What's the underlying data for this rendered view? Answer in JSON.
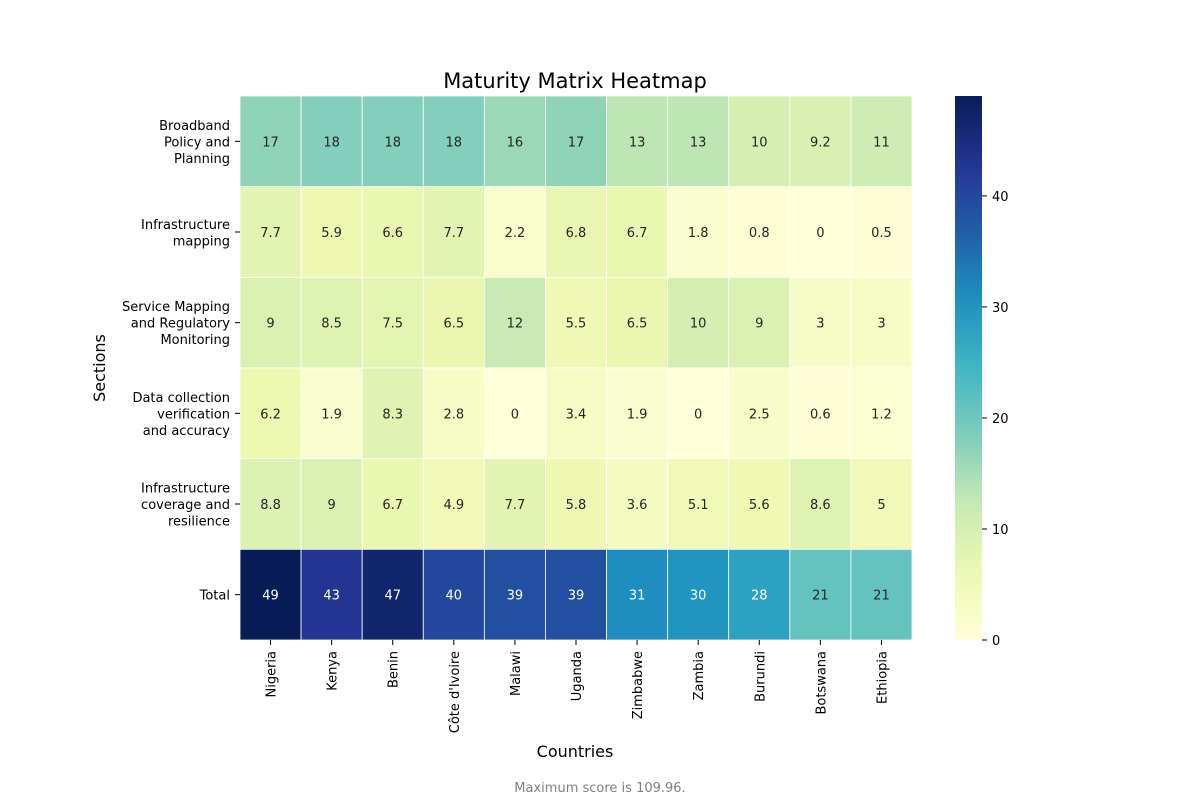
{
  "chart_data": {
    "type": "heatmap",
    "title": "Maturity Matrix Heatmap",
    "xlabel": "Countries",
    "ylabel": "Sections",
    "x_categories": [
      "Nigeria",
      "Kenya",
      "Benin",
      "Côte d'Ivoire",
      "Malawi",
      "Uganda",
      "Zimbabwe",
      "Zambia",
      "Burundi",
      "Botswana",
      "Ethiopia"
    ],
    "y_categories": [
      [
        "Broadband",
        "Policy and",
        "Planning"
      ],
      [
        "Infrastructure",
        "mapping"
      ],
      [
        "Service Mapping",
        "and Regulatory",
        "Monitoring"
      ],
      [
        "Data collection",
        "verification",
        "and accuracy"
      ],
      [
        "Infrastructure",
        "coverage and",
        "resilience"
      ],
      [
        "Total"
      ]
    ],
    "values": [
      [
        17,
        18,
        18,
        18,
        16,
        17,
        13,
        13,
        10,
        9.2,
        11
      ],
      [
        7.7,
        5.9,
        6.6,
        7.7,
        2.2,
        6.8,
        6.7,
        1.8,
        0.8,
        0,
        0.5
      ],
      [
        9,
        8.5,
        7.5,
        6.5,
        12,
        5.5,
        6.5,
        10,
        9,
        3,
        3
      ],
      [
        6.2,
        1.9,
        8.3,
        2.8,
        0,
        3.4,
        1.9,
        0,
        2.5,
        0.6,
        1.2
      ],
      [
        8.8,
        9,
        6.7,
        4.9,
        7.7,
        5.8,
        3.6,
        5.1,
        5.6,
        8.6,
        5
      ],
      [
        49,
        43,
        47,
        40,
        39,
        39,
        31,
        30,
        28,
        21,
        21
      ]
    ],
    "value_labels": [
      [
        "17",
        "18",
        "18",
        "18",
        "16",
        "17",
        "13",
        "13",
        "10",
        "9.2",
        "11"
      ],
      [
        "7.7",
        "5.9",
        "6.6",
        "7.7",
        "2.2",
        "6.8",
        "6.7",
        "1.8",
        "0.8",
        "0",
        "0.5"
      ],
      [
        "9",
        "8.5",
        "7.5",
        "6.5",
        "12",
        "5.5",
        "6.5",
        "10",
        "9",
        "3",
        "3"
      ],
      [
        "6.2",
        "1.9",
        "8.3",
        "2.8",
        "0",
        "3.4",
        "1.9",
        "0",
        "2.5",
        "0.6",
        "1.2"
      ],
      [
        "8.8",
        "9",
        "6.7",
        "4.9",
        "7.7",
        "5.8",
        "3.6",
        "5.1",
        "5.6",
        "8.6",
        "5"
      ],
      [
        "49",
        "43",
        "47",
        "40",
        "39",
        "39",
        "31",
        "30",
        "28",
        "21",
        "21"
      ]
    ],
    "colormap": "YlGnBu",
    "vmin": 0,
    "vmax": 49,
    "colorbar_ticks": [
      0,
      10,
      20,
      30,
      40
    ],
    "colorbar_tick_labels": [
      "0",
      "10",
      "20",
      "30",
      "40"
    ],
    "annotation_dark_color": "#262626",
    "annotation_light_color": "#ffffff",
    "footnote": "Maximum score is 109.96."
  }
}
